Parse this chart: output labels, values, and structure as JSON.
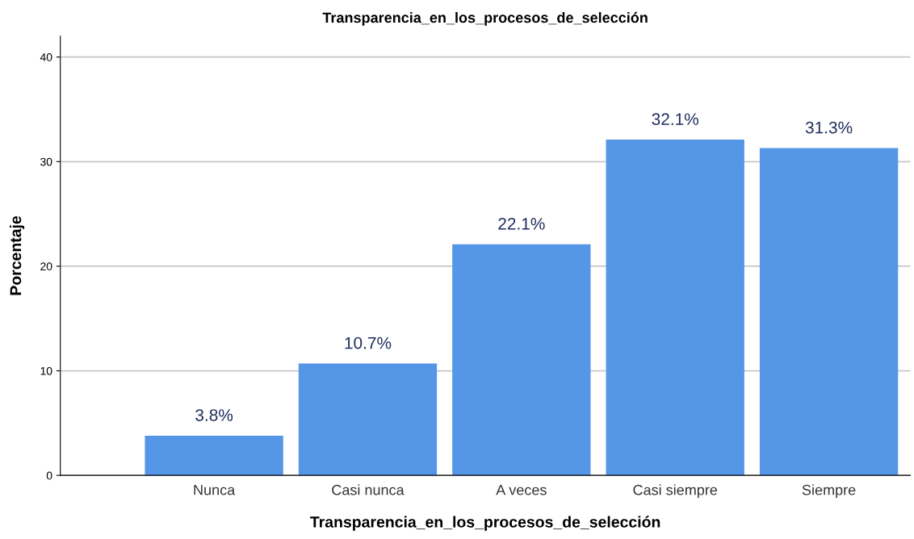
{
  "chart_data": {
    "type": "bar",
    "title": "Transparencia_en_los_procesos_de_selección",
    "xlabel": "Transparencia_en_los_procesos_de_selección",
    "ylabel": "Porcentaje",
    "categories": [
      "Nunca",
      "Casi nunca",
      "A veces",
      "Casi siempre",
      "Siempre"
    ],
    "values": [
      3.8,
      10.7,
      22.1,
      32.1,
      31.3
    ],
    "value_labels": [
      "3.8%",
      "10.7%",
      "22.1%",
      "32.1%",
      "31.3%"
    ],
    "color": "#5596e6",
    "ylim": [
      0,
      42
    ],
    "yticks": [
      0,
      10,
      20,
      30,
      40
    ],
    "grid": "y",
    "legend": false
  }
}
